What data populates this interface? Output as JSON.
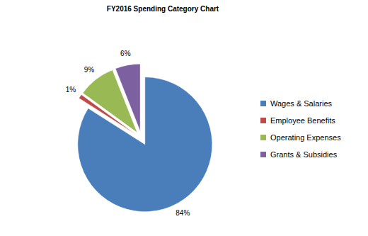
{
  "chart_data": {
    "type": "pie",
    "title": "FY2016 Spending Category Chart",
    "categories": [
      "Wages & Salaries",
      "Employee Benefits",
      "Operating Expenses",
      "Grants & Subsidies"
    ],
    "values": [
      84,
      1,
      9,
      6
    ],
    "value_labels": [
      "84%",
      "1%",
      "9%",
      "6%"
    ],
    "data_labels": true,
    "colors": [
      "#4a7ebb",
      "#be4b48",
      "#98b954",
      "#7d60a0"
    ],
    "legend": "right"
  }
}
